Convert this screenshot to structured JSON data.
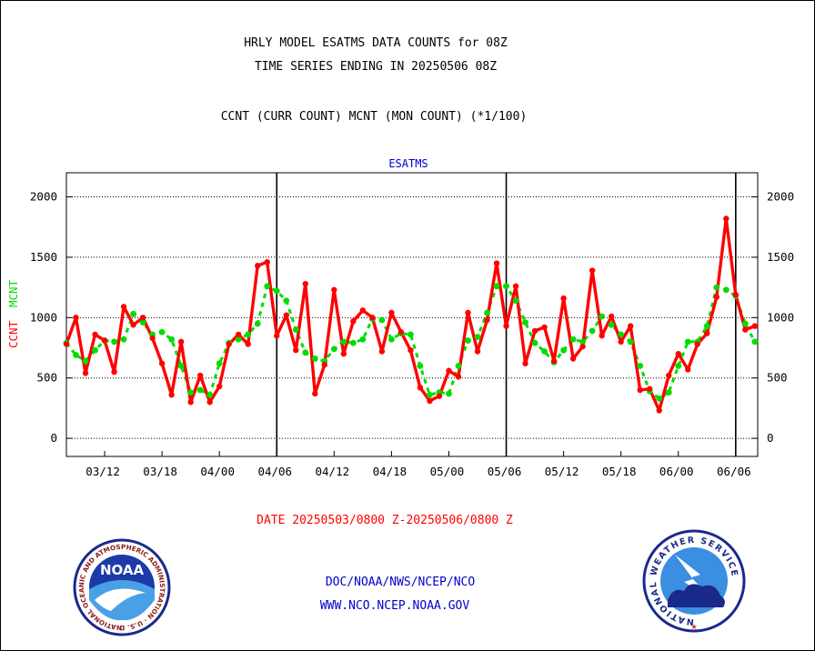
{
  "header": {
    "title_line1": "HRLY MODEL ESATMS DATA COUNTS for 08Z",
    "title_line2": "TIME SERIES ENDING IN 20250506 08Z",
    "subtitle": "CCNT (CURR COUNT) MCNT (MON COUNT) (*1/100)"
  },
  "chart_data": {
    "type": "line",
    "title": "ESATMS",
    "ylabel_series": [
      "CCNT",
      "MCNT"
    ],
    "ylim": [
      -150,
      2200
    ],
    "y_ticks": [
      0,
      500,
      1000,
      1500,
      2000
    ],
    "x_tick_labels": [
      "03/12",
      "03/18",
      "04/00",
      "04/06",
      "04/12",
      "04/18",
      "05/00",
      "05/06",
      "05/12",
      "05/18",
      "06/00",
      "06/06"
    ],
    "x_tick_hours": [
      4,
      10,
      16,
      22,
      28,
      34,
      40,
      46,
      52,
      58,
      64,
      70
    ],
    "x_range_hours": [
      0,
      72.3
    ],
    "day_boundaries_hours": [
      22,
      46,
      70
    ],
    "grid": "horizontal-dotted",
    "series": [
      {
        "name": "CCNT",
        "color": "#ff0000",
        "values": [
          780,
          1000,
          540,
          860,
          810,
          550,
          1090,
          940,
          1000,
          830,
          620,
          360,
          800,
          300,
          520,
          300,
          430,
          780,
          860,
          780,
          1430,
          1460,
          850,
          1020,
          730,
          1280,
          370,
          610,
          1230,
          700,
          970,
          1060,
          1000,
          720,
          1040,
          880,
          730,
          420,
          310,
          350,
          560,
          510,
          1040,
          720,
          980,
          1450,
          930,
          1260,
          620,
          890,
          920,
          640,
          1160,
          660,
          760,
          1390,
          850,
          1010,
          800,
          930,
          400,
          410,
          230,
          520,
          700,
          570,
          780,
          870,
          1170,
          1820,
          1190,
          900,
          930
        ]
      },
      {
        "name": "MCNT",
        "color": "#00dd00",
        "values": [
          790,
          690,
          640,
          730,
          810,
          800,
          820,
          1030,
          960,
          860,
          880,
          820,
          600,
          380,
          400,
          360,
          620,
          790,
          820,
          860,
          950,
          1260,
          1220,
          1140,
          900,
          710,
          660,
          640,
          740,
          800,
          790,
          820,
          990,
          980,
          820,
          870,
          860,
          600,
          360,
          380,
          370,
          600,
          810,
          840,
          1040,
          1260,
          1260,
          1140,
          960,
          790,
          720,
          630,
          730,
          820,
          800,
          890,
          1010,
          940,
          860,
          800,
          600,
          390,
          330,
          380,
          600,
          800,
          800,
          930,
          1250,
          1230,
          1180,
          950,
          800
        ]
      }
    ],
    "xlabel": "DATE 20250503/0800 Z-20250506/0800 Z"
  },
  "footer": {
    "line1": "DOC/NOAA/NWS/NCEP/NCO",
    "line2": "WWW.NCO.NCEP.NOAA.GOV"
  },
  "logos": {
    "noaa_text": "NOAA",
    "noaa_ring": "NATIONAL OCEANIC AND ATMOSPHERIC ADMINISTRATION · U.S. DEPARTMENT OF COMMERCE",
    "nws_ring": "NATIONAL WEATHER SERVICE"
  },
  "colors": {
    "ccnt": "#ff0000",
    "mcnt": "#00dd00",
    "blue_text": "#0000cc",
    "red_text": "#ff0000"
  }
}
